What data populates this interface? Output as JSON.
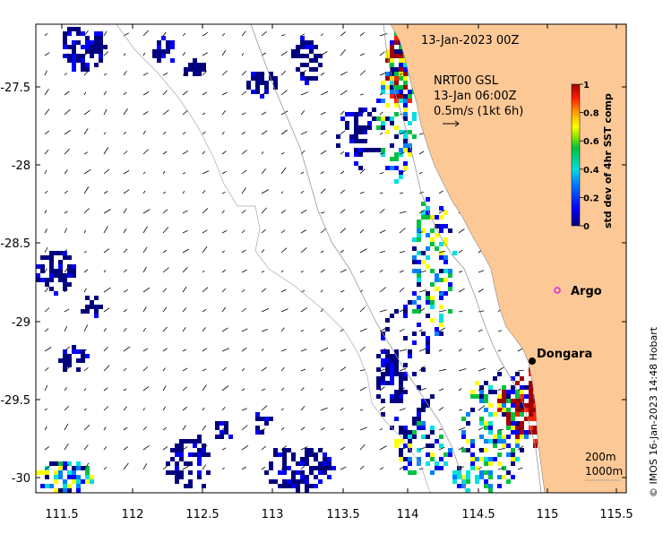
{
  "map": {
    "title": "13-Jan-2023 00Z",
    "current_source": "NRT00 GSL",
    "current_time": "13-Jan 06:00Z",
    "current_scale": "0.5m/s (1kt 6h)",
    "colorbar": {
      "label": "std dev of 4hr SST comp",
      "ticks": [
        "0",
        "0.2",
        "0.4",
        "0.6",
        "0.8",
        "1"
      ],
      "colors": [
        "#00007f",
        "#0000ff",
        "#0080ff",
        "#00e0e0",
        "#00c040",
        "#80e000",
        "#ffff00",
        "#ffa000",
        "#ff2000",
        "#a00000"
      ]
    },
    "x_ticks": [
      "111.5",
      "112",
      "112.5",
      "113",
      "113.5",
      "114",
      "114.5",
      "115",
      "115.5"
    ],
    "y_ticks": [
      "-27.5",
      "-28",
      "-28.5",
      "-29",
      "-29.5",
      "-30"
    ],
    "places": [
      {
        "name": "Dongara",
        "marker": "black-dot"
      },
      {
        "name": "Argo",
        "marker": "magenta-circle"
      }
    ],
    "contour_labels": [
      "200m",
      "1000m"
    ],
    "credit": "© IMOS 16-Jan-2023 14:48 Hobart",
    "land_color": "#fcc896"
  }
}
